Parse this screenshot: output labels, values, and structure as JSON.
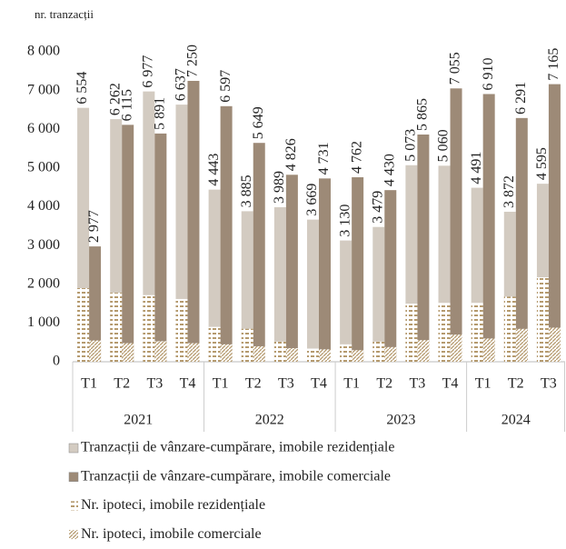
{
  "chart_data": {
    "type": "bar",
    "y_axis_label": "nr. tranzacții",
    "groups": [
      {
        "name": "2021",
        "categories": [
          "T1",
          "T2",
          "T3",
          "T4"
        ]
      },
      {
        "name": "2022",
        "categories": [
          "T1",
          "T2",
          "T3",
          "T4"
        ]
      },
      {
        "name": "2023",
        "categories": [
          "T1",
          "T2",
          "T3",
          "T4"
        ]
      },
      {
        "name": "2024",
        "categories": [
          "T1",
          "T2",
          "T3"
        ]
      }
    ],
    "ylim": [
      0,
      8000
    ],
    "yticks": [
      0,
      {
        "value": 1000,
        "label": "1 000"
      },
      {
        "value": 2000,
        "label": "2 000"
      },
      {
        "value": 3000,
        "label": "3 000"
      },
      {
        "value": 4000,
        "label": "4 000"
      },
      {
        "value": 5000,
        "label": "5 000"
      },
      {
        "value": 6000,
        "label": "6 000"
      },
      {
        "value": 7000,
        "label": "7 000"
      },
      {
        "value": 8000,
        "label": "8 000"
      }
    ],
    "series": [
      {
        "name": "Tranzacții de vânzare-cumpărare, imobile rezidențiale",
        "color": "#d3cbc1",
        "pattern": "solid",
        "values": [
          6554,
          6262,
          6977,
          6637,
          4443,
          3885,
          3989,
          3669,
          3130,
          3479,
          5073,
          5060,
          4491,
          3872,
          4595
        ],
        "value_labels": [
          "6 554",
          "6 262",
          "6 977",
          "6 637",
          "4 443",
          "3 885",
          "3 989",
          "3 669",
          "3 130",
          "3 479",
          "5 073",
          "5 060",
          "4 491",
          "3 872",
          "4 595"
        ]
      },
      {
        "name": "Tranzacții de vânzare-cumpărare, imobile comerciale",
        "color": "#9d8a77",
        "pattern": "solid",
        "values": [
          2977,
          6115,
          5891,
          7250,
          6597,
          5649,
          4826,
          4731,
          4762,
          4430,
          5865,
          7055,
          6910,
          6291,
          7165
        ],
        "value_labels": [
          "2 977",
          "6 115",
          "5 891",
          "7 250",
          "6 597",
          "5 649",
          "4 826",
          "4 731",
          "4 762",
          "4 430",
          "5 865",
          "7 055",
          "6 910",
          "6 291",
          "7 165"
        ]
      },
      {
        "name": "Nr. ipoteci, imobile rezidențiale",
        "color": "#b59a6e",
        "pattern": "dashes",
        "values": [
          1900,
          1780,
          1720,
          1620,
          900,
          850,
          520,
          340,
          450,
          520,
          1500,
          1520,
          1520,
          1680,
          2180
        ]
      },
      {
        "name": "Nr. ipoteci, imobile comerciale",
        "color": "#b59a6e",
        "pattern": "diagonal",
        "values": [
          550,
          480,
          530,
          480,
          450,
          400,
          350,
          320,
          300,
          380,
          560,
          700,
          600,
          850,
          880
        ]
      }
    ]
  }
}
